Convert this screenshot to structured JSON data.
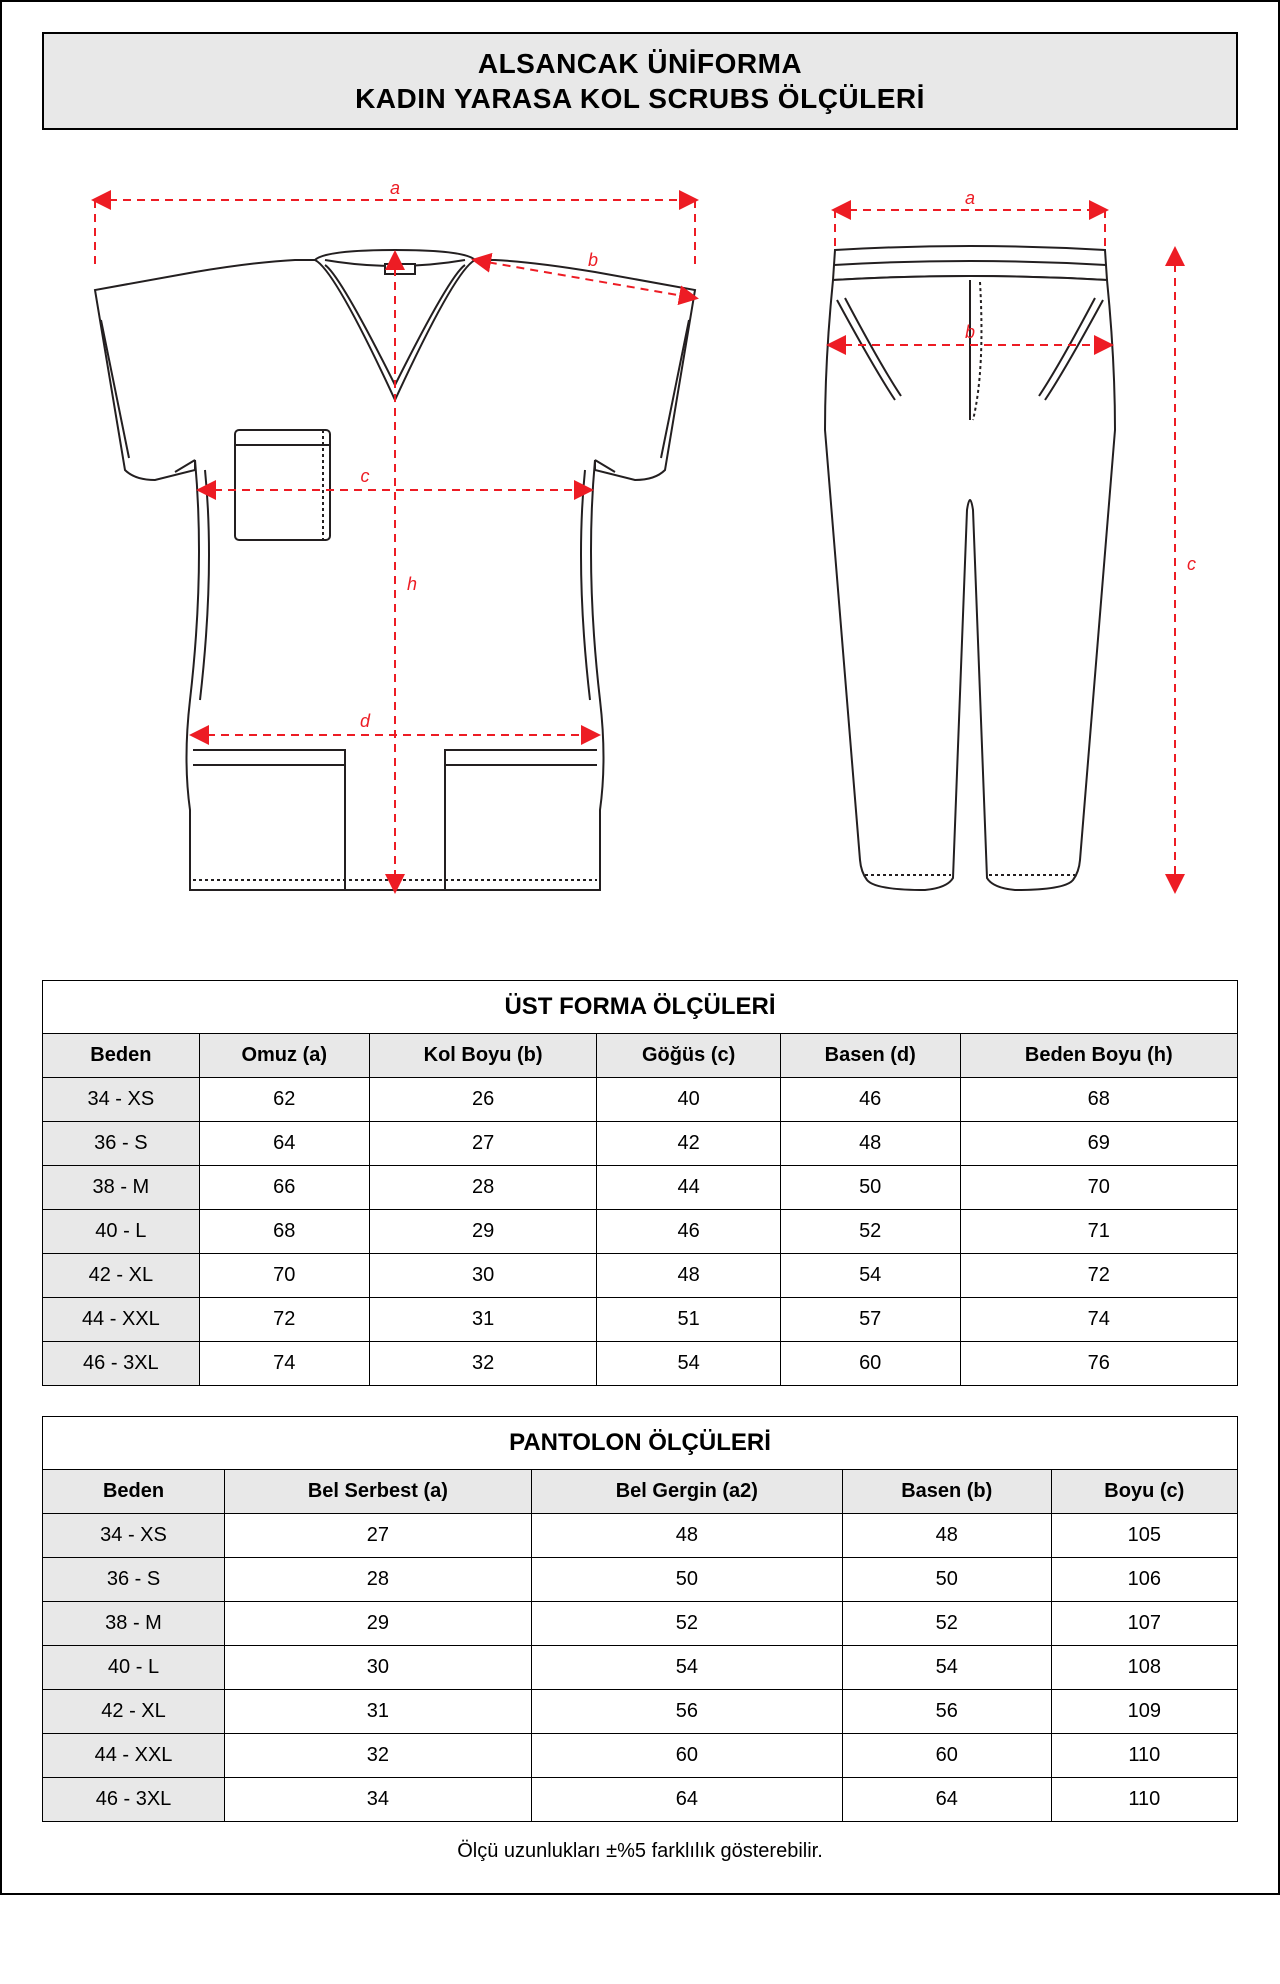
{
  "style": {
    "red": "#ed1c24",
    "red_dash": "8 6",
    "border_color": "#000000",
    "header_bg": "#e8e8e8",
    "page_bg": "#ffffff",
    "garment_stroke": "#231f20",
    "garment_stroke_width": 2,
    "dim_stroke_width": 2,
    "arrow_size": 9,
    "label_font_size": 18,
    "label_font_style": "italic"
  },
  "title": {
    "line1": "ALSANCAK ÜNİFORMA",
    "line2": "KADIN YARASA KOL SCRUBS ÖLÇÜLERİ"
  },
  "diagram": {
    "shirt_labels": {
      "a": "a",
      "b": "b",
      "c": "c",
      "d": "d",
      "h": "h"
    },
    "pants_labels": {
      "a": "a",
      "b": "b",
      "c": "c"
    }
  },
  "top_table": {
    "title": "ÜST FORMA ÖLÇÜLERİ",
    "columns": [
      "Beden",
      "Omuz (a)",
      "Kol Boyu (b)",
      "Göğüs (c)",
      "Basen (d)",
      "Beden Boyu (h)"
    ],
    "rows": [
      [
        "34 - XS",
        "62",
        "26",
        "40",
        "46",
        "68"
      ],
      [
        "36 - S",
        "64",
        "27",
        "42",
        "48",
        "69"
      ],
      [
        "38 - M",
        "66",
        "28",
        "44",
        "50",
        "70"
      ],
      [
        "40 - L",
        "68",
        "29",
        "46",
        "52",
        "71"
      ],
      [
        "42 - XL",
        "70",
        "30",
        "48",
        "54",
        "72"
      ],
      [
        "44 - XXL",
        "72",
        "31",
        "51",
        "57",
        "74"
      ],
      [
        "46 - 3XL",
        "74",
        "32",
        "54",
        "60",
        "76"
      ]
    ]
  },
  "pants_table": {
    "title": "PANTOLON ÖLÇÜLERİ",
    "columns": [
      "Beden",
      "Bel Serbest (a)",
      "Bel Gergin (a2)",
      "Basen (b)",
      "Boyu (c)"
    ],
    "rows": [
      [
        "34 - XS",
        "27",
        "48",
        "48",
        "105"
      ],
      [
        "36 - S",
        "28",
        "50",
        "50",
        "106"
      ],
      [
        "38 - M",
        "29",
        "52",
        "52",
        "107"
      ],
      [
        "40 - L",
        "30",
        "54",
        "54",
        "108"
      ],
      [
        "42 - XL",
        "31",
        "56",
        "56",
        "109"
      ],
      [
        "44 - XXL",
        "32",
        "60",
        "60",
        "110"
      ],
      [
        "46 - 3XL",
        "34",
        "64",
        "64",
        "110"
      ]
    ]
  },
  "footnote": "Ölçü uzunlukları ±%5 farklılık gösterebilir."
}
